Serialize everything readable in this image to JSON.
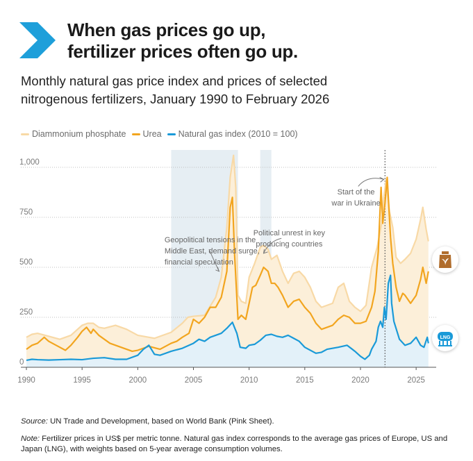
{
  "header": {
    "title_line1": "When gas prices go up,",
    "title_line2": "fertilizer prices often go up.",
    "subtitle_line1": "Monthly natural gas price index and prices of selected",
    "subtitle_line2": "nitrogenous fertilizers, January 1990 to February 2026"
  },
  "icons": {
    "fertilizer": "fertilizer-bag-icon",
    "lng": "lng-tank-icon",
    "lng_label": "LNG"
  },
  "footer": {
    "source_label": "Source:",
    "source_text": " UN Trade and Development, based on World Bank (Pink Sheet).",
    "note_label": "Note:",
    "note_text": " Fertilizer prices in US$ per metric tonne. Natural gas index corresponds to the average gas prices of Europe, US and Japan (LNG), with weights based on 5-year average consumption volumes."
  },
  "colors": {
    "dap": "#f8d9a6",
    "urea": "#f2a51f",
    "gas": "#1a9ad8",
    "shade": "#e6eef3",
    "chevron": "#1e9fda",
    "fill_dap": "#fcefd9",
    "fill_gas": "#e3f1f9",
    "fertilizer_icon": "#b06d2c",
    "lng_icon": "#1a9ad8"
  },
  "chart_data": {
    "type": "line",
    "title": "Monthly natural gas price index and prices of selected nitrogenous fertilizers, January 1990 to February 2026",
    "xlabel": "",
    "ylabel": "",
    "xlim": [
      1989.5,
      2026.8
    ],
    "ylim": [
      0,
      1080
    ],
    "x_ticks": [
      1990,
      1995,
      2000,
      2005,
      2010,
      2015,
      2020,
      2025
    ],
    "x_tick_labels": [
      "1990",
      "1995",
      "2000",
      "2005",
      "2010",
      "2015",
      "2020",
      "2025"
    ],
    "y_ticks": [
      0,
      250,
      500,
      750,
      1000
    ],
    "y_tick_labels": [
      "0",
      "250",
      "500",
      "750",
      "1,000"
    ],
    "grid": "horizontal dotted",
    "legend_position": "top-left",
    "shaded_periods": [
      [
        2003.0,
        2009.0
      ],
      [
        2011.0,
        2012.0
      ]
    ],
    "event_line": {
      "x": 2022.2,
      "label": [
        "Start of the",
        "war in Ukraine"
      ]
    },
    "annotations": [
      {
        "lines": [
          "Geopolitical tensions in the",
          "Middle East, demand surge,",
          "financial speculation"
        ],
        "target": [
          2007.3,
          480
        ]
      },
      {
        "lines": [
          "Political unrest in key",
          "producing countries"
        ],
        "target": [
          2011.3,
          570
        ]
      },
      {
        "lines": [
          "Start of the",
          "war in Ukraine"
        ],
        "target": [
          2022.1,
          955
        ]
      }
    ],
    "series": [
      {
        "name": "Diammonium phosphate",
        "x": [
          1990,
          1990.5,
          1991,
          1992,
          1993,
          1994,
          1994.5,
          1995,
          1995.5,
          1996,
          1996.5,
          1997,
          1998,
          1999,
          2000,
          2001,
          2001.5,
          2002,
          2003,
          2004,
          2004.5,
          2005,
          2006,
          2007,
          2007.5,
          2008,
          2008.3,
          2008.6,
          2008.8,
          2009,
          2009.3,
          2009.7,
          2010,
          2010.5,
          2011,
          2011.3,
          2011.7,
          2012,
          2012.5,
          2013,
          2013.5,
          2014,
          2014.5,
          2015,
          2015.5,
          2016,
          2016.5,
          2017,
          2017.5,
          2018,
          2018.5,
          2019,
          2019.5,
          2020,
          2020.5,
          2021,
          2021.5,
          2021.9,
          2022.1,
          2022.3,
          2022.6,
          2022.9,
          2023.2,
          2023.6,
          2024,
          2024.5,
          2025,
          2025.4,
          2025.6,
          2025.9,
          2026.1
        ],
        "values": [
          150,
          165,
          170,
          155,
          140,
          160,
          185,
          210,
          220,
          220,
          200,
          195,
          210,
          190,
          160,
          150,
          145,
          155,
          175,
          220,
          250,
          255,
          260,
          350,
          450,
          700,
          950,
          1060,
          900,
          360,
          330,
          320,
          450,
          520,
          600,
          610,
          590,
          540,
          560,
          480,
          420,
          470,
          480,
          450,
          400,
          330,
          300,
          310,
          320,
          400,
          420,
          330,
          300,
          280,
          310,
          500,
          600,
          720,
          850,
          940,
          780,
          700,
          550,
          520,
          540,
          570,
          640,
          740,
          800,
          690,
          630
        ]
      },
      {
        "name": "Urea",
        "x": [
          1990,
          1990.5,
          1991,
          1991.6,
          1992,
          1993,
          1993.5,
          1994,
          1994.6,
          1995,
          1995.4,
          1995.8,
          1996,
          1996.5,
          1997,
          1997.5,
          1998,
          1998.5,
          1999,
          1999.5,
          2000,
          2001,
          2002,
          2003,
          2003.5,
          2004,
          2004.6,
          2005,
          2005.5,
          2006,
          2006.5,
          2007,
          2007.5,
          2008,
          2008.3,
          2008.5,
          2008.7,
          2009,
          2009.3,
          2009.7,
          2010,
          2010.3,
          2010.6,
          2011,
          2011.3,
          2011.7,
          2012,
          2012.3,
          2012.6,
          2013,
          2013.5,
          2014,
          2014.5,
          2015,
          2015.5,
          2016,
          2016.5,
          2017,
          2017.5,
          2018,
          2018.5,
          2019,
          2019.5,
          2020,
          2020.5,
          2021,
          2021.3,
          2021.6,
          2021.85,
          2022,
          2022.2,
          2022.4,
          2022.7,
          2022.9,
          2023.2,
          2023.5,
          2023.8,
          2024,
          2024.5,
          2025,
          2025.4,
          2025.6,
          2025.9,
          2026.1
        ],
        "values": [
          90,
          110,
          120,
          150,
          130,
          100,
          85,
          110,
          150,
          180,
          200,
          170,
          190,
          160,
          140,
          120,
          110,
          100,
          90,
          80,
          85,
          105,
          90,
          120,
          130,
          150,
          170,
          240,
          220,
          250,
          300,
          300,
          350,
          480,
          800,
          850,
          560,
          240,
          260,
          240,
          320,
          400,
          410,
          460,
          500,
          480,
          420,
          420,
          400,
          360,
          300,
          330,
          340,
          300,
          270,
          220,
          190,
          200,
          210,
          240,
          260,
          250,
          220,
          220,
          230,
          300,
          380,
          580,
          900,
          720,
          820,
          950,
          650,
          520,
          400,
          330,
          370,
          360,
          320,
          360,
          440,
          500,
          420,
          480
        ]
      },
      {
        "name": "Natural gas index (2010 = 100)",
        "x": [
          1990,
          1990.5,
          1991,
          1992,
          1993,
          1994,
          1995,
          1996,
          1997,
          1998,
          1999,
          2000,
          2000.5,
          2001,
          2001.5,
          2002,
          2003,
          2004,
          2005,
          2005.5,
          2006,
          2006.5,
          2007,
          2007.5,
          2008,
          2008.5,
          2008.9,
          2009.2,
          2009.7,
          2010,
          2010.5,
          2011,
          2011.5,
          2012,
          2012.5,
          2013,
          2013.5,
          2014,
          2014.5,
          2015,
          2016,
          2016.5,
          2017,
          2018,
          2018.8,
          2019.5,
          2020,
          2020.4,
          2020.8,
          2021,
          2021.4,
          2021.6,
          2021.8,
          2022,
          2022.15,
          2022.3,
          2022.5,
          2022.7,
          2022.8,
          2023,
          2023.5,
          2024,
          2024.5,
          2025,
          2025.4,
          2025.7,
          2026,
          2026.1
        ],
        "values": [
          35,
          40,
          38,
          36,
          38,
          40,
          38,
          45,
          48,
          40,
          40,
          60,
          90,
          110,
          65,
          60,
          80,
          95,
          120,
          140,
          130,
          150,
          160,
          170,
          195,
          225,
          170,
          100,
          95,
          110,
          115,
          135,
          160,
          165,
          155,
          150,
          160,
          145,
          130,
          100,
          70,
          75,
          90,
          100,
          110,
          80,
          55,
          40,
          60,
          90,
          130,
          200,
          230,
          200,
          300,
          240,
          420,
          460,
          320,
          230,
          140,
          110,
          120,
          150,
          110,
          100,
          150,
          120
        ]
      }
    ]
  }
}
